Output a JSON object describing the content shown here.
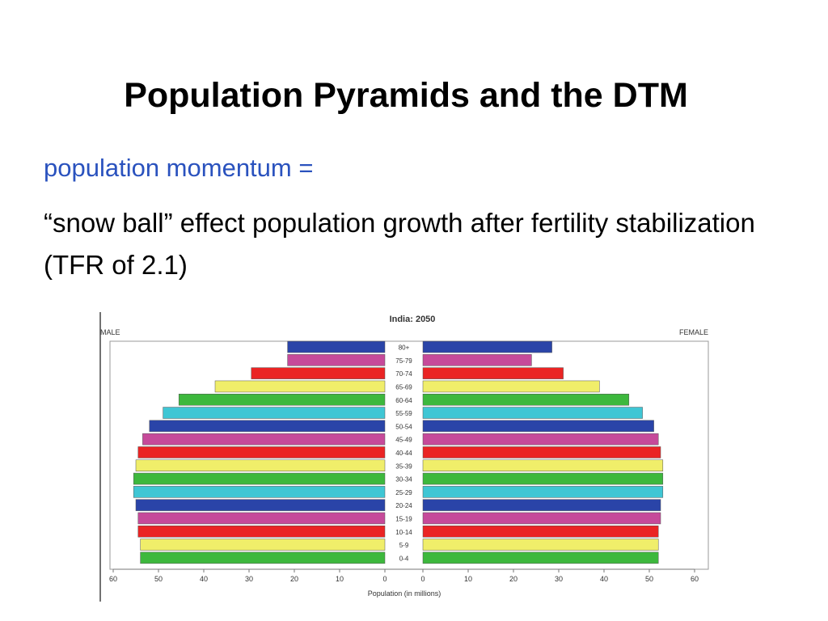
{
  "slide": {
    "title": "Population Pyramids and the DTM",
    "term": "population momentum =",
    "definition": "“snow ball” effect population growth after fertility stabilization (TFR of 2.1)"
  },
  "chart_data": {
    "type": "bar",
    "orientation": "horizontal",
    "title": "India: 2050",
    "xlabel": "Population (in millions)",
    "left_label": "MALE",
    "right_label": "FEMALE",
    "xlim": [
      0,
      60
    ],
    "x_ticks": [
      60,
      50,
      40,
      30,
      20,
      10,
      0
    ],
    "categories": [
      "0-4",
      "5-9",
      "10-14",
      "15-19",
      "20-24",
      "25-29",
      "30-34",
      "35-39",
      "40-44",
      "45-49",
      "50-54",
      "55-59",
      "60-64",
      "65-69",
      "70-74",
      "75-79",
      "80+"
    ],
    "series": [
      {
        "name": "MALE",
        "values": [
          54,
          54,
          54.5,
          54.5,
          55,
          55.5,
          55.5,
          55,
          54.5,
          53.5,
          52,
          49,
          45.5,
          37.5,
          29.5,
          21.5,
          21.5
        ]
      },
      {
        "name": "FEMALE",
        "values": [
          52,
          52,
          52,
          52.5,
          52.5,
          53,
          53,
          53,
          52.5,
          52,
          51,
          48.5,
          45.5,
          39,
          31,
          24,
          28.5
        ]
      }
    ],
    "band_colors": [
      "#3db83d",
      "#f0ee6a",
      "#ea2424",
      "#c64a9a",
      "#2a44a8",
      "#3fc6d4",
      "#3db83d",
      "#f0ee6a",
      "#ea2424",
      "#c64a9a",
      "#2a44a8",
      "#3fc6d4",
      "#3db83d",
      "#f0ee6a",
      "#ea2424",
      "#c64a9a",
      "#2a44a8"
    ],
    "grid": false
  }
}
